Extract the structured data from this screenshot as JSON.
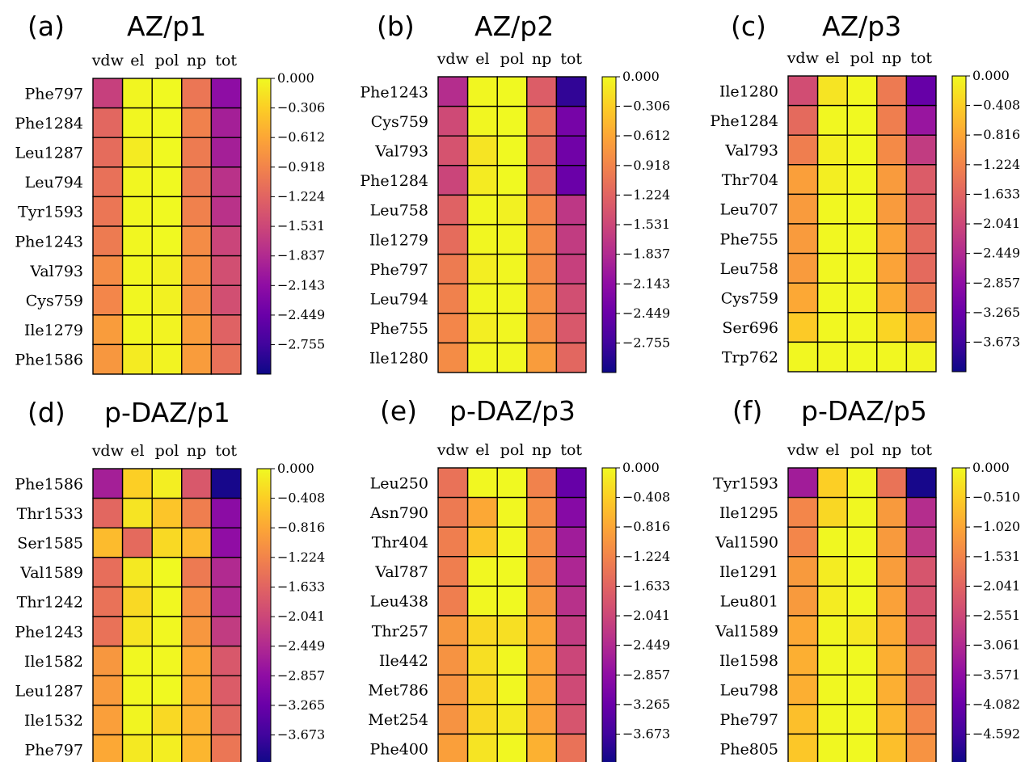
{
  "chart_data": [
    {
      "type": "heatmap",
      "panel_label": "(a)",
      "title": "AZ/p1",
      "columns": [
        "vdw",
        "el",
        "pol",
        "np",
        "tot"
      ],
      "rows": [
        "Phe797",
        "Phe1284",
        "Leu1287",
        "Leu794",
        "Tyr1593",
        "Phe1243",
        "Val793",
        "Cys759",
        "Ile1279",
        "Phe1586"
      ],
      "values": [
        [
          -1.6,
          -0.03,
          0.0,
          -1.05,
          -2.15
        ],
        [
          -1.2,
          -0.02,
          0.0,
          -0.95,
          -1.95
        ],
        [
          -1.15,
          -0.1,
          0.0,
          -1.0,
          -1.95
        ],
        [
          -1.1,
          -0.02,
          0.0,
          -1.0,
          -1.75
        ],
        [
          -1.05,
          -0.02,
          0.0,
          -0.95,
          -1.75
        ],
        [
          -1.0,
          -0.02,
          0.0,
          -0.85,
          -1.55
        ],
        [
          -0.85,
          -0.02,
          -0.06,
          -0.8,
          -1.45
        ],
        [
          -0.9,
          -0.02,
          -0.06,
          -0.8,
          -1.45
        ],
        [
          -0.7,
          -0.02,
          -0.04,
          -0.7,
          -1.25
        ],
        [
          -0.75,
          -0.1,
          -0.04,
          -0.7,
          -1.1
        ]
      ],
      "colorbar": {
        "ticks": [
          "0.000",
          "−0.306",
          "−0.612",
          "−0.918",
          "−1.224",
          "−1.531",
          "−1.837",
          "−2.143",
          "−2.449",
          "−2.755"
        ],
        "min": -3.06,
        "max": 0.0
      },
      "colormap": "plasma"
    },
    {
      "type": "heatmap",
      "panel_label": "(b)",
      "title": "AZ/p2",
      "columns": [
        "vdw",
        "el",
        "pol",
        "np",
        "tot"
      ],
      "rows": [
        "Phe1243",
        "Cys759",
        "Val793",
        "Phe1284",
        "Leu758",
        "Ile1279",
        "Phe797",
        "Leu794",
        "Phe755",
        "Ile1280"
      ],
      "values": [
        [
          -1.8,
          -0.02,
          0.0,
          -1.3,
          -2.85
        ],
        [
          -1.5,
          -0.02,
          0.0,
          -1.1,
          -2.35
        ],
        [
          -1.4,
          -0.15,
          0.0,
          -1.15,
          -2.4
        ],
        [
          -1.55,
          -0.1,
          0.0,
          -1.1,
          -2.45
        ],
        [
          -1.25,
          -0.02,
          -0.06,
          -0.9,
          -1.7
        ],
        [
          -1.15,
          -0.02,
          -0.03,
          -0.85,
          -1.65
        ],
        [
          -1.0,
          -0.08,
          -0.02,
          -0.85,
          -1.6
        ],
        [
          -0.95,
          -0.02,
          -0.02,
          -0.8,
          -1.45
        ],
        [
          -0.9,
          -0.08,
          -0.02,
          -0.8,
          -1.35
        ],
        [
          -0.85,
          -0.02,
          -0.02,
          -0.7,
          -1.2
        ]
      ],
      "colorbar": {
        "ticks": [
          "0.000",
          "−0.306",
          "−0.612",
          "−0.918",
          "−1.224",
          "−1.531",
          "−1.837",
          "−2.143",
          "−2.449",
          "−2.755"
        ],
        "min": -3.06,
        "max": 0.0
      },
      "colormap": "plasma"
    },
    {
      "type": "heatmap",
      "panel_label": "(c)",
      "title": "AZ/p3",
      "columns": [
        "vdw",
        "el",
        "pol",
        "np",
        "tot"
      ],
      "rows": [
        "Ile1280",
        "Phe1284",
        "Val793",
        "Thr704",
        "Leu707",
        "Phe755",
        "Leu758",
        "Cys759",
        "Ser696",
        "Trp762"
      ],
      "values": [
        [
          -1.95,
          -0.2,
          -0.02,
          -1.35,
          -3.3
        ],
        [
          -1.55,
          -0.02,
          0.0,
          -1.3,
          -2.75
        ],
        [
          -1.3,
          -0.1,
          0.0,
          -1.15,
          -2.2
        ],
        [
          -0.9,
          -0.1,
          -0.02,
          -0.95,
          -1.75
        ],
        [
          -0.95,
          -0.02,
          0.0,
          -0.95,
          -1.65
        ],
        [
          -0.95,
          -0.02,
          0.0,
          -0.85,
          -1.55
        ],
        [
          -0.95,
          -0.02,
          0.0,
          -0.85,
          -1.55
        ],
        [
          -0.8,
          -0.02,
          0.0,
          -0.75,
          -1.35
        ],
        [
          -0.45,
          -0.02,
          -0.02,
          -0.35,
          -0.75
        ],
        [
          -0.02,
          -0.02,
          0.0,
          -0.02,
          -0.05
        ]
      ],
      "colorbar": {
        "ticks": [
          "0.000",
          "−0.408",
          "−0.816",
          "−1.224",
          "−1.633",
          "−2.041",
          "−2.449",
          "−2.857",
          "−3.265",
          "−3.673"
        ],
        "min": -4.08,
        "max": 0.0
      },
      "colormap": "plasma"
    },
    {
      "type": "heatmap",
      "panel_label": "(d)",
      "title": "p-DAZ/p1",
      "columns": [
        "vdw",
        "el",
        "pol",
        "np",
        "tot"
      ],
      "rows": [
        "Phe1586",
        "Thr1533",
        "Ser1585",
        "Val1589",
        "Thr1242",
        "Phe1243",
        "Ile1582",
        "Leu1287",
        "Ile1532",
        "Phe797"
      ],
      "values": [
        [
          -2.6,
          -0.4,
          -0.1,
          -1.8,
          -4.0
        ],
        [
          -1.6,
          -0.2,
          -0.5,
          -1.3,
          -2.9
        ],
        [
          -0.6,
          -1.55,
          -0.3,
          -0.6,
          -2.85
        ],
        [
          -1.5,
          -0.15,
          0.0,
          -1.35,
          -2.45
        ],
        [
          -1.45,
          -0.3,
          -0.02,
          -1.1,
          -2.45
        ],
        [
          -1.45,
          -0.2,
          -0.02,
          -1.0,
          -2.2
        ],
        [
          -1.0,
          -0.02,
          -0.02,
          -0.8,
          -1.8
        ],
        [
          -0.95,
          -0.02,
          0.0,
          -0.75,
          -1.75
        ],
        [
          -0.9,
          -0.05,
          -0.3,
          -0.7,
          -1.6
        ],
        [
          -0.8,
          -0.15,
          -0.1,
          -0.65,
          -1.4
        ]
      ],
      "colorbar": {
        "ticks": [
          "0.000",
          "−0.408",
          "−0.816",
          "−1.224",
          "−1.633",
          "−2.041",
          "−2.449",
          "−2.857",
          "−3.265",
          "−3.673"
        ],
        "min": -4.08,
        "max": 0.0
      },
      "colormap": "plasma"
    },
    {
      "type": "heatmap",
      "panel_label": "(e)",
      "title": "p-DAZ/p3",
      "columns": [
        "vdw",
        "el",
        "pol",
        "np",
        "tot"
      ],
      "rows": [
        "Leu250",
        "Asn790",
        "Thr404",
        "Val787",
        "Leu438",
        "Thr257",
        "Ile442",
        "Met786",
        "Met254",
        "Phe400"
      ],
      "values": [
        [
          -1.45,
          -0.02,
          0.0,
          -1.25,
          -3.3
        ],
        [
          -1.35,
          -0.8,
          -0.02,
          -1.1,
          -2.95
        ],
        [
          -1.3,
          -0.5,
          -0.02,
          -1.1,
          -2.65
        ],
        [
          -1.3,
          -0.02,
          0.0,
          -1.1,
          -2.5
        ],
        [
          -1.3,
          -0.02,
          0.0,
          -1.0,
          -2.35
        ],
        [
          -1.0,
          -0.3,
          -0.25,
          -0.85,
          -2.2
        ],
        [
          -1.05,
          -0.25,
          -0.02,
          -0.85,
          -2.05
        ],
        [
          -1.05,
          -0.3,
          -0.02,
          -0.85,
          -2.0
        ],
        [
          -1.05,
          -0.3,
          -0.15,
          -0.85,
          -1.85
        ],
        [
          -0.9,
          -0.2,
          -0.02,
          -0.7,
          -1.45
        ]
      ],
      "colorbar": {
        "ticks": [
          "0.000",
          "−0.408",
          "−0.816",
          "−1.224",
          "−1.633",
          "−2.041",
          "−2.449",
          "−2.857",
          "−3.265",
          "−3.673"
        ],
        "min": -4.08,
        "max": 0.0
      },
      "colormap": "plasma"
    },
    {
      "type": "heatmap",
      "panel_label": "(f)",
      "title": "p-DAZ/p5",
      "columns": [
        "vdw",
        "el",
        "pol",
        "np",
        "tot"
      ],
      "rows": [
        "Tyr1593",
        "Ile1295",
        "Val1590",
        "Ile1291",
        "Leu801",
        "Val1589",
        "Ile1598",
        "Leu798",
        "Phe797",
        "Phe805"
      ],
      "values": [
        [
          -3.3,
          -0.5,
          -0.02,
          -1.8,
          -5.0
        ],
        [
          -1.5,
          -0.4,
          -0.02,
          -1.2,
          -3.0
        ],
        [
          -1.5,
          -0.02,
          0.0,
          -1.2,
          -2.8
        ],
        [
          -1.2,
          -0.15,
          0.0,
          -1.15,
          -2.3
        ],
        [
          -1.2,
          -0.15,
          0.0,
          -1.1,
          -2.3
        ],
        [
          -1.0,
          -0.05,
          -0.2,
          -1.0,
          -2.2
        ],
        [
          -0.9,
          -0.02,
          0.0,
          -0.9,
          -1.8
        ],
        [
          -0.9,
          -0.02,
          0.0,
          -0.9,
          -1.8
        ],
        [
          -0.7,
          -0.02,
          0.0,
          -0.8,
          -1.5
        ],
        [
          -0.6,
          -0.02,
          0.0,
          -0.7,
          -1.3
        ]
      ],
      "colorbar": {
        "ticks": [
          "0.000",
          "−0.510",
          "−1.020",
          "−1.531",
          "−2.041",
          "−2.551",
          "−3.061",
          "−3.571",
          "−4.082",
          "−4.592"
        ],
        "min": -5.1,
        "max": 0.0
      },
      "colormap": "plasma"
    }
  ]
}
